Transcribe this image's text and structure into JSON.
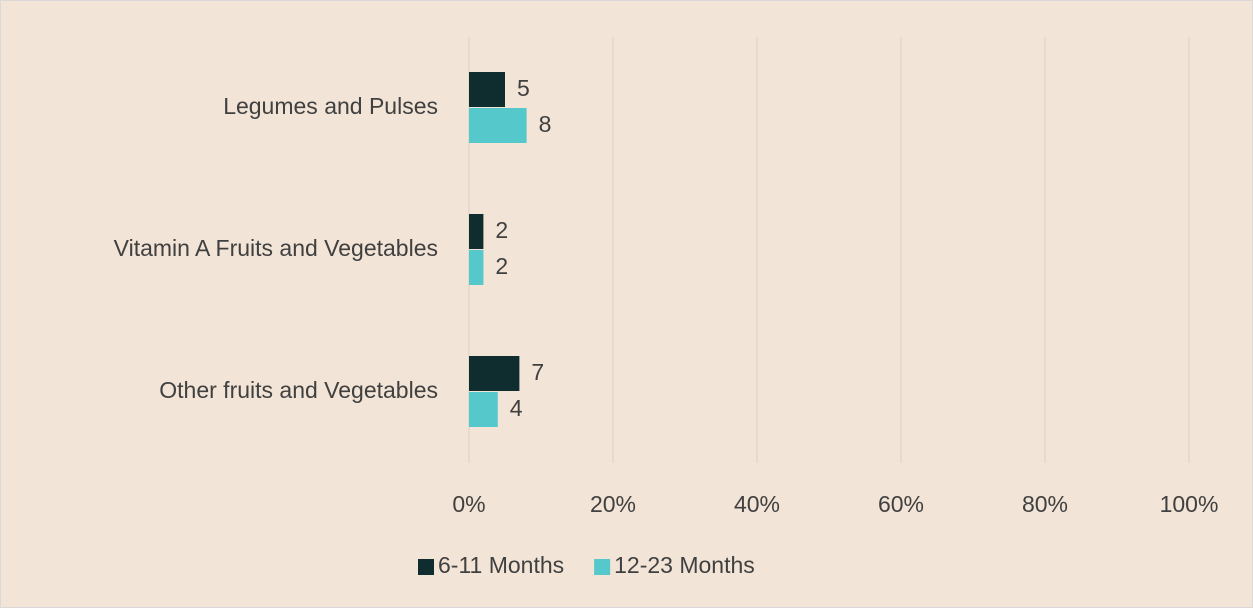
{
  "chart_data": {
    "type": "hbar",
    "categories": [
      "Legumes and Pulses",
      "Vitamin A Fruits and Vegetables",
      "Other fruits and Vegetables"
    ],
    "series": [
      {
        "name": "6-11 Months",
        "color": "#0f2d2f",
        "values": [
          5,
          2,
          7
        ]
      },
      {
        "name": "12-23 Months",
        "color": "#55c8cc",
        "values": [
          8,
          2,
          4
        ]
      }
    ],
    "xlim": [
      0,
      100
    ],
    "xticks": [
      {
        "value": 0,
        "label": "0%"
      },
      {
        "value": 20,
        "label": "20%"
      },
      {
        "value": 40,
        "label": "40%"
      },
      {
        "value": 60,
        "label": "60%"
      },
      {
        "value": 80,
        "label": "80%"
      },
      {
        "value": 100,
        "label": "100%"
      }
    ],
    "grid": true,
    "legend": "bottom"
  }
}
